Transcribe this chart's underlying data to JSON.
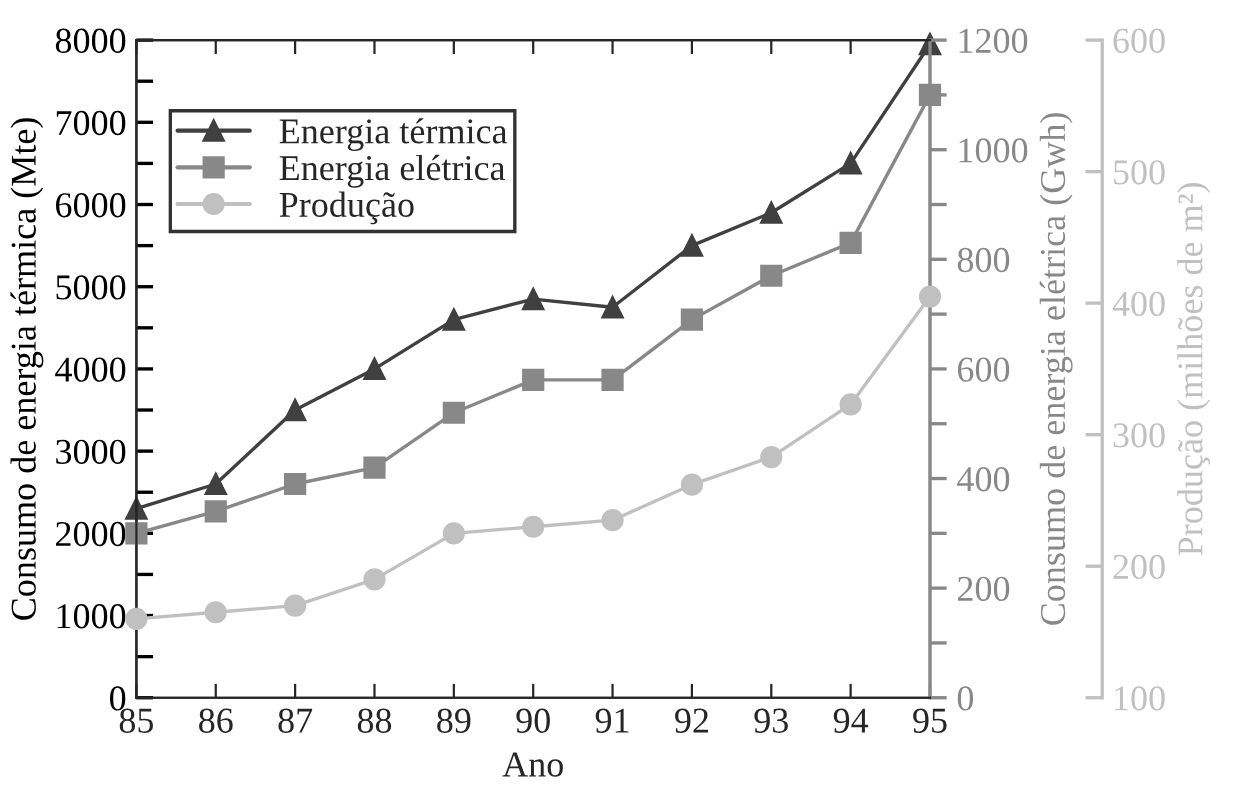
{
  "chart_data": {
    "type": "line",
    "xlabel": "Ano",
    "ylabel": "Consumo de energia térmica (Mte)",
    "y2label": "Consumo de energia elétrica (Gwh)",
    "y3label": "Produção (milhões de m²)",
    "x": [
      85,
      86,
      87,
      88,
      89,
      90,
      91,
      92,
      93,
      94,
      95
    ],
    "xlim": [
      85,
      95
    ],
    "xticks": [
      85,
      86,
      87,
      88,
      89,
      90,
      91,
      92,
      93,
      94,
      95
    ],
    "ylim": [
      0,
      8000
    ],
    "yticks": [
      0,
      {
        "value": 500,
        "label": null
      },
      1000,
      {
        "value": 1500,
        "label": null
      },
      2000,
      {
        "value": 2500,
        "label": null
      },
      3000,
      {
        "value": 3500,
        "label": null
      },
      4000,
      {
        "value": 4500,
        "label": null
      },
      5000,
      {
        "value": 5500,
        "label": null
      },
      6000,
      {
        "value": 6500,
        "label": null
      },
      7000,
      {
        "value": 7500,
        "label": null
      },
      8000
    ],
    "y2lim": [
      0,
      1200
    ],
    "y2ticks": [
      0,
      {
        "value": 100,
        "label": null
      },
      200,
      {
        "value": 300,
        "label": null
      },
      400,
      {
        "value": 500,
        "label": null
      },
      600,
      {
        "value": 700,
        "label": null
      },
      800,
      {
        "value": 900,
        "label": null
      },
      1000,
      {
        "value": 1100,
        "label": null
      },
      1200
    ],
    "y3lim": [
      100,
      600
    ],
    "y3ticks": [
      100,
      200,
      300,
      400,
      500,
      600
    ],
    "legend": "top left",
    "grid": false,
    "series": [
      {
        "name": "Energia térmica",
        "color": "#404040",
        "marker": "triangle",
        "values": [
          2300,
          2600,
          3500,
          4000,
          4600,
          4850,
          4750,
          5500,
          5900,
          6500,
          7950
        ]
      },
      {
        "name": "Energia elétrica",
        "color": "#888888",
        "marker": "square",
        "axis": "y2",
        "values": [
          300,
          340,
          390,
          420,
          520,
          580,
          580,
          690,
          770,
          830,
          1100
        ]
      },
      {
        "name": "Produção",
        "color": "#c0c0c0",
        "marker": "circle",
        "axis": "y3",
        "values": [
          160,
          165,
          170,
          190,
          225,
          230,
          235,
          262,
          283,
          323,
          405
        ]
      }
    ]
  }
}
